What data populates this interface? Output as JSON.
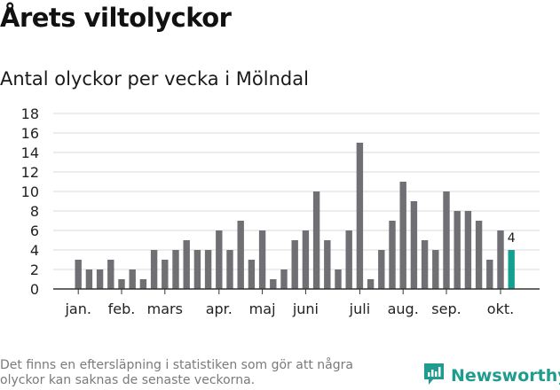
{
  "title": "Årets viltolyckor",
  "subtitle": "Antal olyckor per vecka i Mölndal",
  "footnote": "Det finns en eftersläpning i statistiken som gör att några olyckor kan saknas de senaste veckorna.",
  "brand": {
    "name": "Newsworthy",
    "icon": "newsworthy-logo-icon",
    "color": "#1f9c8e"
  },
  "colors": {
    "bar": "#6f6f74",
    "highlight": "#14a08f",
    "grid": "#d9d9d9",
    "axis": "#333333"
  },
  "chart_data": {
    "type": "bar",
    "values": [
      3,
      2,
      2,
      3,
      1,
      2,
      1,
      4,
      3,
      4,
      5,
      4,
      4,
      6,
      4,
      7,
      3,
      6,
      1,
      2,
      5,
      6,
      10,
      5,
      2,
      6,
      15,
      1,
      4,
      7,
      11,
      9,
      5,
      4,
      10,
      8,
      8,
      7,
      3,
      6,
      4
    ],
    "month_labels": [
      {
        "label": "jan.",
        "week": 1
      },
      {
        "label": "feb.",
        "week": 5
      },
      {
        "label": "mars",
        "week": 9
      },
      {
        "label": "apr.",
        "week": 14
      },
      {
        "label": "maj",
        "week": 18
      },
      {
        "label": "juni",
        "week": 22
      },
      {
        "label": "juli",
        "week": 27
      },
      {
        "label": "aug.",
        "week": 31
      },
      {
        "label": "sep.",
        "week": 35
      },
      {
        "label": "okt.",
        "week": 40
      }
    ],
    "y_ticks": [
      0,
      2,
      4,
      6,
      8,
      10,
      12,
      14,
      16,
      18
    ],
    "ylim": [
      0,
      18
    ],
    "grid": true,
    "highlight_last": true,
    "last_value_label": "4"
  }
}
